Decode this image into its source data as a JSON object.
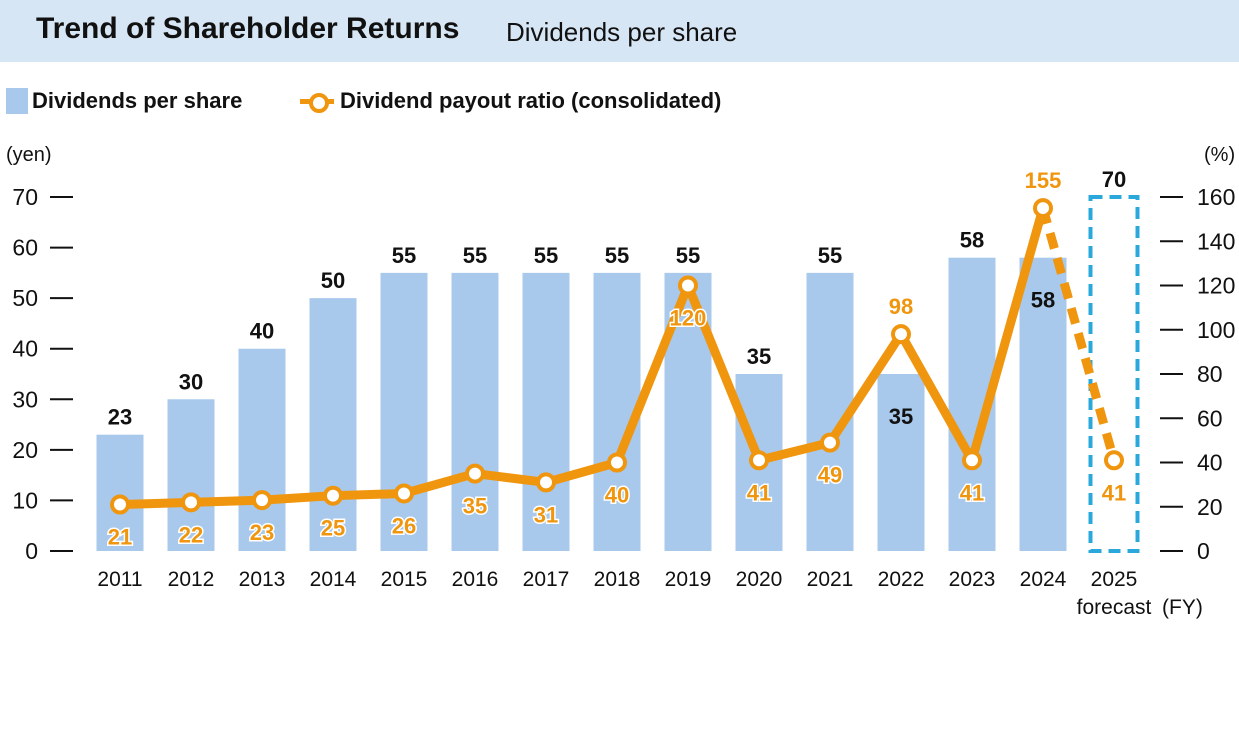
{
  "header": {
    "title": "Trend of Shareholder Returns",
    "subtitle": "Dividends per share"
  },
  "legend": {
    "bars": "Dividends per share",
    "line": "Dividend payout ratio (consolidated)"
  },
  "axes": {
    "left_unit": "(yen)",
    "right_unit": "(%)",
    "x_unit": "(FY)"
  },
  "colors": {
    "bar": "#a8c9eb",
    "line": "#f0950e",
    "forecast_box": "#2aa8dc",
    "header_bg": "#d7e6f5"
  },
  "chart_data": {
    "type": "bar",
    "title": "Trend of Shareholder Returns",
    "subtitle": "Dividends per share",
    "categories": [
      "2011",
      "2012",
      "2013",
      "2014",
      "2015",
      "2016",
      "2017",
      "2018",
      "2019",
      "2020",
      "2021",
      "2022",
      "2023",
      "2024",
      "2025"
    ],
    "category_sublabels": [
      "",
      "",
      "",
      "",
      "",
      "",
      "",
      "",
      "",
      "",
      "",
      "",
      "",
      "",
      "forecast"
    ],
    "left_axis": {
      "label": "(yen)",
      "ylim": [
        0,
        70
      ],
      "ticks": [
        0,
        10,
        20,
        30,
        40,
        50,
        60,
        70
      ]
    },
    "right_axis": {
      "label": "(%)",
      "ylim": [
        0,
        160
      ],
      "ticks": [
        0,
        20,
        40,
        60,
        80,
        100,
        120,
        140,
        160
      ]
    },
    "x_axis_unit": "(FY)",
    "series": [
      {
        "name": "Dividends per share",
        "type": "bar",
        "axis": "left",
        "values": [
          23,
          30,
          40,
          50,
          55,
          55,
          55,
          55,
          55,
          35,
          55,
          35,
          58,
          58,
          70
        ],
        "forecast_from_index": 14
      },
      {
        "name": "Dividend payout ratio (consolidated)",
        "type": "line",
        "axis": "right",
        "values": [
          21,
          22,
          23,
          25,
          26,
          35,
          31,
          40,
          120,
          41,
          49,
          98,
          41,
          155,
          41
        ],
        "forecast_from_index": 14
      }
    ],
    "legend_position": "top-left",
    "grid": false
  }
}
